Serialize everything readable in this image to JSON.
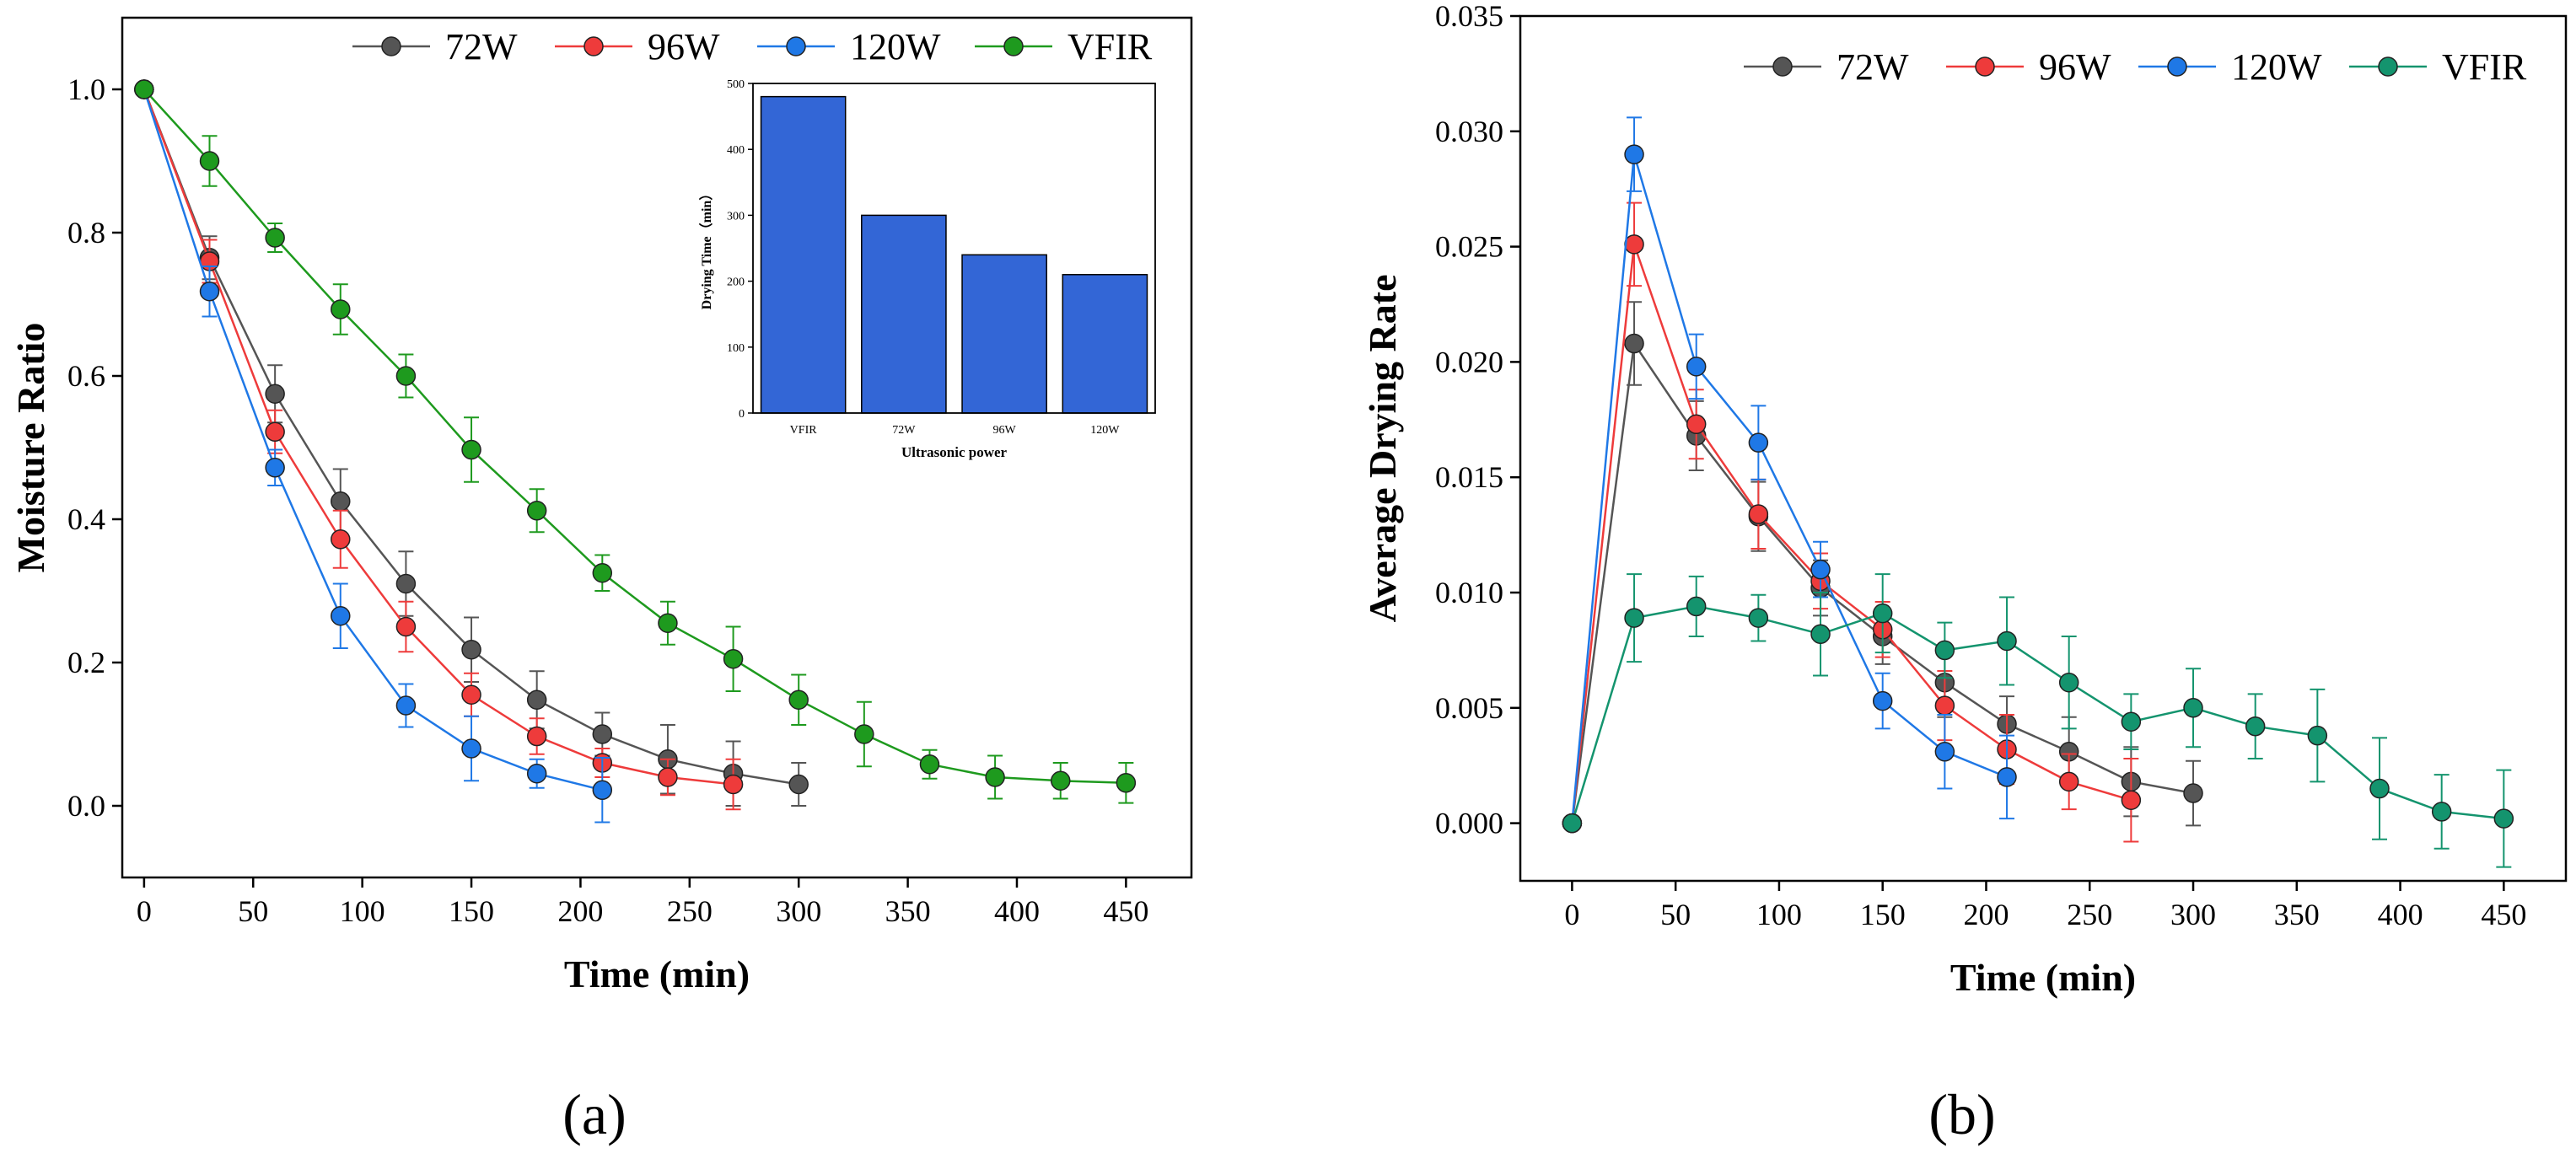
{
  "panels": [
    "(a)",
    "(b)"
  ],
  "chart_data": [
    {
      "type": "line",
      "panel": "(a)",
      "xlabel": "Time (min)",
      "ylabel": "Moisture Ratio",
      "xlim": [
        -10,
        480
      ],
      "ylim": [
        -0.1,
        1.1
      ],
      "xticks": [
        0,
        50,
        100,
        150,
        200,
        250,
        300,
        350,
        400,
        450
      ],
      "yticks": [
        0.0,
        0.2,
        0.4,
        0.6,
        0.8,
        1.0
      ],
      "ytick_format": "0.0",
      "legend_position": "top",
      "series": [
        {
          "name": "72W",
          "color": "#555555",
          "x": [
            0,
            30,
            60,
            90,
            120,
            150,
            180,
            210,
            240,
            270,
            300
          ],
          "y": [
            1.0,
            0.765,
            0.575,
            0.425,
            0.31,
            0.218,
            0.148,
            0.1,
            0.065,
            0.045,
            0.03
          ],
          "err": [
            0,
            0.03,
            0.04,
            0.045,
            0.045,
            0.045,
            0.04,
            0.03,
            0.048,
            0.045,
            0.03
          ]
        },
        {
          "name": "96W",
          "color": "#ee3b3b",
          "x": [
            0,
            30,
            60,
            90,
            120,
            150,
            180,
            210,
            240,
            270
          ],
          "y": [
            1.0,
            0.76,
            0.522,
            0.372,
            0.25,
            0.155,
            0.097,
            0.06,
            0.04,
            0.03
          ],
          "err": [
            0,
            0.03,
            0.03,
            0.04,
            0.035,
            0.03,
            0.025,
            0.02,
            0.025,
            0.035
          ]
        },
        {
          "name": "120W",
          "color": "#1f78e6",
          "x": [
            0,
            30,
            60,
            90,
            120,
            150,
            180,
            210
          ],
          "y": [
            1.0,
            0.718,
            0.472,
            0.265,
            0.14,
            0.08,
            0.045,
            0.022
          ],
          "err": [
            0,
            0.035,
            0.025,
            0.045,
            0.03,
            0.045,
            0.02,
            0.045
          ]
        },
        {
          "name": "VFIR",
          "color": "#1e9a1e",
          "x": [
            0,
            30,
            60,
            90,
            120,
            150,
            180,
            210,
            240,
            270,
            300,
            330,
            360,
            390,
            420,
            450
          ],
          "y": [
            1.0,
            0.9,
            0.793,
            0.693,
            0.6,
            0.497,
            0.412,
            0.325,
            0.255,
            0.205,
            0.148,
            0.1,
            0.058,
            0.04,
            0.035,
            0.032
          ],
          "err": [
            0,
            0.035,
            0.02,
            0.035,
            0.03,
            0.045,
            0.03,
            0.025,
            0.03,
            0.045,
            0.035,
            0.045,
            0.02,
            0.03,
            0.025,
            0.028
          ]
        }
      ]
    },
    {
      "type": "bar",
      "panel": "(a) inset",
      "xlabel": "Ultrasonic power",
      "ylabel": "Drying Time（min）",
      "categories": [
        "VFIR",
        "72W",
        "96W",
        "120W"
      ],
      "values": [
        480,
        300,
        240,
        210
      ],
      "ylim": [
        0,
        500
      ],
      "yticks": [
        0,
        100,
        200,
        300,
        400,
        500
      ],
      "color": "#3366d6"
    },
    {
      "type": "line",
      "panel": "(b)",
      "xlabel": "Time (min)",
      "ylabel": "Average Drying Rate",
      "xlim": [
        -25,
        480
      ],
      "ylim": [
        -0.0025,
        0.035
      ],
      "xticks": [
        0,
        50,
        100,
        150,
        200,
        250,
        300,
        350,
        400,
        450
      ],
      "yticks": [
        0.0,
        0.005,
        0.01,
        0.015,
        0.02,
        0.025,
        0.03,
        0.035
      ],
      "ytick_format": "0.000",
      "legend_position": "top",
      "series": [
        {
          "name": "72W",
          "color": "#555555",
          "x": [
            0,
            30,
            60,
            90,
            120,
            150,
            180,
            210,
            240,
            270,
            300
          ],
          "y": [
            0.0,
            0.0208,
            0.0168,
            0.0133,
            0.0102,
            0.0081,
            0.0061,
            0.0043,
            0.0031,
            0.0018,
            0.0013
          ],
          "err": [
            0,
            0.0018,
            0.0015,
            0.0015,
            0.0012,
            0.0012,
            0.0015,
            0.0012,
            0.0015,
            0.0015,
            0.0014
          ]
        },
        {
          "name": "96W",
          "color": "#ee3b3b",
          "x": [
            0,
            30,
            60,
            90,
            120,
            150,
            180,
            210,
            240,
            270
          ],
          "y": [
            0.0,
            0.0251,
            0.0173,
            0.0134,
            0.0105,
            0.0084,
            0.0051,
            0.0032,
            0.0018,
            0.001
          ],
          "err": [
            0,
            0.0018,
            0.0015,
            0.0015,
            0.0012,
            0.0012,
            0.0015,
            0.0015,
            0.0012,
            0.0018
          ]
        },
        {
          "name": "120W",
          "color": "#1f78e6",
          "x": [
            0,
            30,
            60,
            90,
            120,
            150,
            180,
            210
          ],
          "y": [
            0.0,
            0.029,
            0.0198,
            0.0165,
            0.011,
            0.0053,
            0.0031,
            0.002
          ],
          "err": [
            0,
            0.0016,
            0.0014,
            0.0016,
            0.0012,
            0.0012,
            0.0016,
            0.0018
          ]
        },
        {
          "name": "VFIR",
          "color": "#14946e",
          "x": [
            0,
            30,
            60,
            90,
            120,
            150,
            180,
            210,
            240,
            270,
            300,
            330,
            360,
            390,
            420,
            450
          ],
          "y": [
            0.0,
            0.0089,
            0.0094,
            0.0089,
            0.0082,
            0.0091,
            0.0075,
            0.0079,
            0.0061,
            0.0044,
            0.005,
            0.0042,
            0.0038,
            0.0015,
            0.0005,
            0.0002
          ],
          "err": [
            0,
            0.0019,
            0.0013,
            0.001,
            0.0018,
            0.0017,
            0.0012,
            0.0019,
            0.002,
            0.0012,
            0.0017,
            0.0014,
            0.002,
            0.0022,
            0.0016,
            0.0021
          ]
        }
      ]
    }
  ]
}
